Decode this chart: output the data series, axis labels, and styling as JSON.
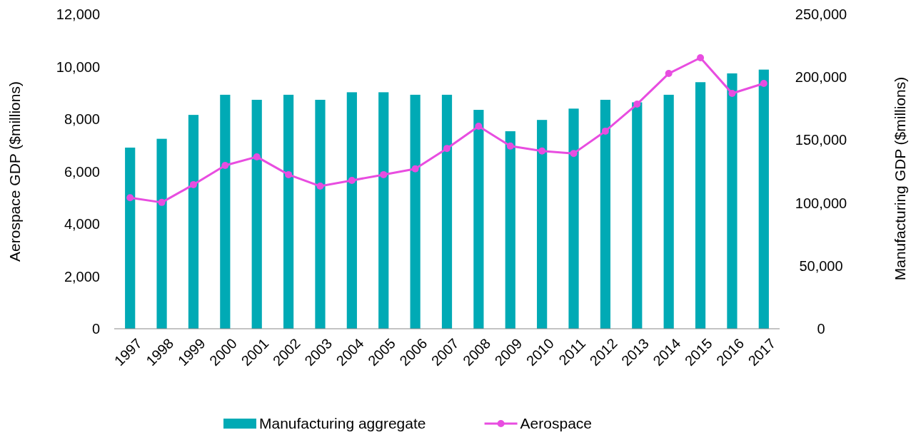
{
  "chart_data": {
    "type": "bar",
    "categories": [
      "1997",
      "1998",
      "1999",
      "2000",
      "2001",
      "2002",
      "2003",
      "2004",
      "2005",
      "2006",
      "2007",
      "2008",
      "2009",
      "2010",
      "2011",
      "2012",
      "2013",
      "2014",
      "2015",
      "2016",
      "2017"
    ],
    "ylabel": "Aerospace GDP ($millions)",
    "y2label": "Manufacturing GDP ($millions)",
    "ylim": [
      0,
      12000
    ],
    "yticks": [
      {
        "value": 0,
        "label": "0"
      },
      {
        "value": 2000,
        "label": "2,000"
      },
      {
        "value": 4000,
        "label": "4,000"
      },
      {
        "value": 6000,
        "label": "6,000"
      },
      {
        "value": 8000,
        "label": "8,000"
      },
      {
        "value": 10000,
        "label": "10,000"
      },
      {
        "value": 12000,
        "label": "12,000"
      }
    ],
    "y2lim": [
      0,
      250000
    ],
    "y2ticks": [
      {
        "value": 0,
        "label": "0"
      },
      {
        "value": 50000,
        "label": "50,000"
      },
      {
        "value": 100000,
        "label": "100,000"
      },
      {
        "value": 150000,
        "label": "150,000"
      },
      {
        "value": 200000,
        "label": "200,000"
      },
      {
        "value": 250000,
        "label": "250,000"
      }
    ],
    "legend": "bottom",
    "grid": false,
    "series": [
      {
        "name": "Manufacturing aggregate",
        "axis": "y2",
        "color": "#00aab5",
        "values": [
          144000,
          151000,
          170000,
          186000,
          182000,
          186000,
          182000,
          188000,
          188000,
          186000,
          186000,
          174000,
          157000,
          166000,
          175000,
          182000,
          180000,
          186000,
          196000,
          203000,
          206000
        ]
      },
      {
        "name": "Aerospace",
        "type": "line",
        "axis": "y",
        "color": "#e84de0",
        "marker": "circle",
        "values": [
          5000,
          4820,
          5500,
          6230,
          6560,
          5880,
          5440,
          5660,
          5880,
          6100,
          6880,
          7730,
          6970,
          6780,
          6690,
          7540,
          8570,
          9740,
          10340,
          8980,
          9360
        ]
      }
    ]
  }
}
